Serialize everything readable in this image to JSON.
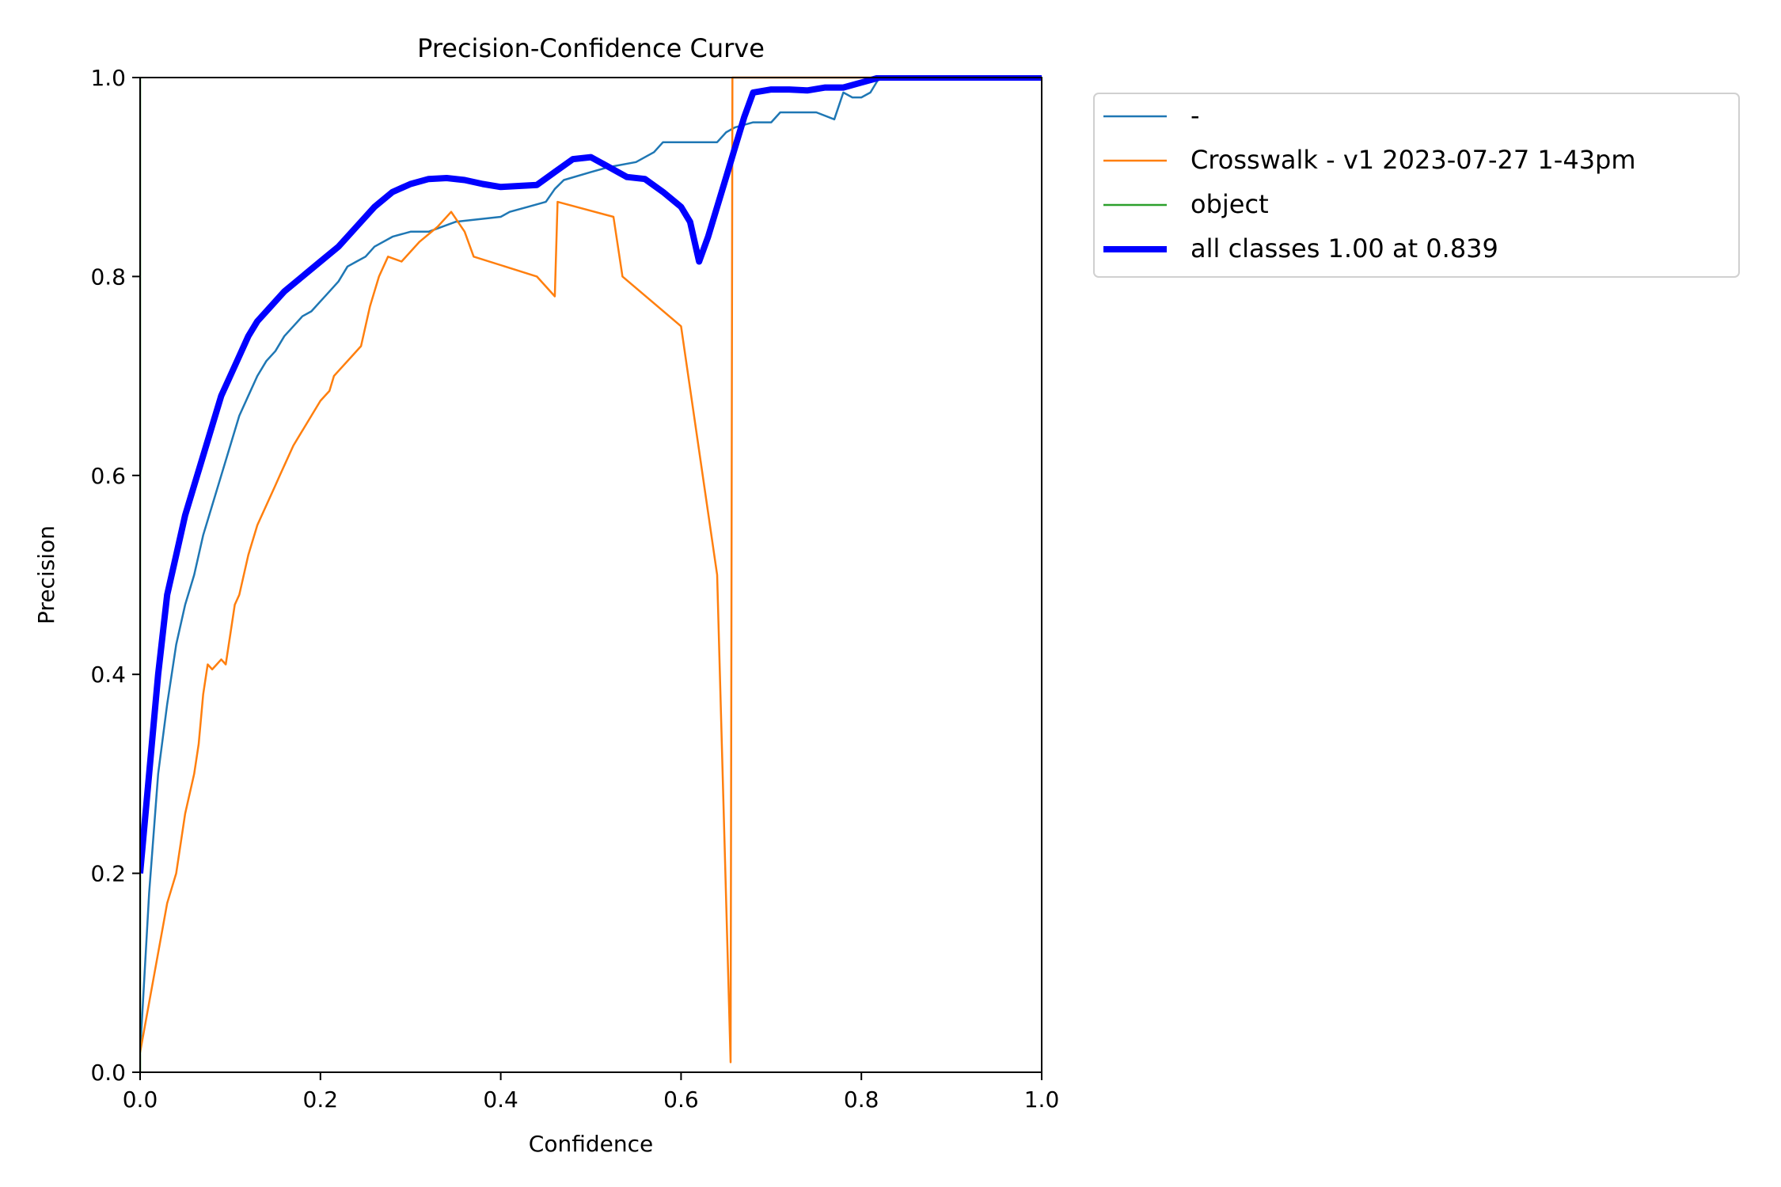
{
  "chart_data": {
    "type": "line",
    "title": "Precision-Confidence Curve",
    "xlabel": "Confidence",
    "ylabel": "Precision",
    "xlim": [
      0.0,
      1.0
    ],
    "ylim": [
      0.0,
      1.0
    ],
    "xticks": [
      "0.0",
      "0.2",
      "0.4",
      "0.6",
      "0.8",
      "1.0"
    ],
    "yticks": [
      "0.0",
      "0.2",
      "0.4",
      "0.6",
      "0.8",
      "1.0"
    ],
    "grid": false,
    "legend_position": "outside-right-top",
    "series": [
      {
        "name": "-",
        "color": "#1f77b4",
        "width": "thin",
        "x": [
          0.0,
          0.005,
          0.01,
          0.02,
          0.03,
          0.04,
          0.05,
          0.06,
          0.07,
          0.08,
          0.09,
          0.1,
          0.11,
          0.12,
          0.13,
          0.14,
          0.15,
          0.16,
          0.17,
          0.18,
          0.19,
          0.2,
          0.21,
          0.22,
          0.23,
          0.24,
          0.25,
          0.26,
          0.28,
          0.3,
          0.32,
          0.35,
          0.38,
          0.4,
          0.41,
          0.43,
          0.45,
          0.46,
          0.47,
          0.5,
          0.52,
          0.55,
          0.57,
          0.58,
          0.6,
          0.62,
          0.64,
          0.65,
          0.66,
          0.68,
          0.7,
          0.71,
          0.72,
          0.75,
          0.77,
          0.78,
          0.79,
          0.8,
          0.81,
          0.82,
          0.85,
          0.9,
          1.0
        ],
        "y": [
          0.02,
          0.1,
          0.18,
          0.3,
          0.37,
          0.43,
          0.47,
          0.5,
          0.54,
          0.57,
          0.6,
          0.63,
          0.66,
          0.68,
          0.7,
          0.715,
          0.725,
          0.74,
          0.75,
          0.76,
          0.765,
          0.775,
          0.785,
          0.795,
          0.81,
          0.815,
          0.82,
          0.83,
          0.84,
          0.845,
          0.845,
          0.855,
          0.858,
          0.86,
          0.865,
          0.87,
          0.875,
          0.888,
          0.897,
          0.905,
          0.91,
          0.915,
          0.925,
          0.935,
          0.935,
          0.935,
          0.935,
          0.945,
          0.95,
          0.955,
          0.955,
          0.965,
          0.965,
          0.965,
          0.958,
          0.985,
          0.98,
          0.98,
          0.985,
          1.0,
          1.0,
          1.0,
          1.0
        ]
      },
      {
        "name": "Crosswalk - v1 2023-07-27 1-43pm",
        "color": "#ff7f0e",
        "width": "thin",
        "x": [
          0.0,
          0.01,
          0.02,
          0.03,
          0.04,
          0.05,
          0.06,
          0.065,
          0.07,
          0.075,
          0.08,
          0.085,
          0.09,
          0.095,
          0.1,
          0.105,
          0.11,
          0.12,
          0.13,
          0.14,
          0.15,
          0.155,
          0.16,
          0.17,
          0.18,
          0.19,
          0.2,
          0.21,
          0.215,
          0.22,
          0.235,
          0.245,
          0.255,
          0.265,
          0.275,
          0.29,
          0.31,
          0.33,
          0.345,
          0.36,
          0.37,
          0.44,
          0.46,
          0.463,
          0.525,
          0.535,
          0.6,
          0.64,
          0.655,
          0.657,
          0.66,
          0.665,
          0.67,
          0.7,
          0.8,
          0.9,
          1.0
        ],
        "y": [
          0.02,
          0.07,
          0.12,
          0.17,
          0.2,
          0.26,
          0.3,
          0.33,
          0.38,
          0.41,
          0.405,
          0.41,
          0.415,
          0.41,
          0.44,
          0.47,
          0.48,
          0.52,
          0.55,
          0.57,
          0.59,
          0.6,
          0.61,
          0.63,
          0.645,
          0.66,
          0.675,
          0.685,
          0.7,
          0.705,
          0.72,
          0.73,
          0.77,
          0.8,
          0.82,
          0.815,
          0.835,
          0.85,
          0.865,
          0.845,
          0.82,
          0.8,
          0.78,
          0.875,
          0.86,
          0.8,
          0.75,
          0.5,
          0.01,
          1.0,
          1.0,
          1.0,
          1.0,
          1.0,
          1.0,
          1.0,
          1.0
        ]
      },
      {
        "name": "object",
        "color": "#2ca02c",
        "width": "thin",
        "x": [
          0.0,
          0.0,
          0.0
        ],
        "y": [
          0.0,
          0.5,
          1.0
        ]
      },
      {
        "name": "all classes 1.00 at 0.839",
        "color": "#0000ff",
        "width": "thick",
        "x": [
          0.0,
          0.01,
          0.02,
          0.03,
          0.04,
          0.05,
          0.06,
          0.07,
          0.08,
          0.09,
          0.1,
          0.11,
          0.12,
          0.13,
          0.14,
          0.15,
          0.16,
          0.18,
          0.2,
          0.22,
          0.24,
          0.26,
          0.28,
          0.3,
          0.32,
          0.34,
          0.36,
          0.38,
          0.4,
          0.42,
          0.44,
          0.46,
          0.48,
          0.5,
          0.52,
          0.54,
          0.56,
          0.58,
          0.6,
          0.61,
          0.62,
          0.63,
          0.64,
          0.65,
          0.66,
          0.67,
          0.68,
          0.7,
          0.72,
          0.74,
          0.76,
          0.78,
          0.8,
          0.82,
          0.84,
          0.9,
          1.0
        ],
        "y": [
          0.2,
          0.3,
          0.4,
          0.48,
          0.52,
          0.56,
          0.59,
          0.62,
          0.65,
          0.68,
          0.7,
          0.72,
          0.74,
          0.755,
          0.765,
          0.775,
          0.785,
          0.8,
          0.815,
          0.83,
          0.85,
          0.87,
          0.885,
          0.893,
          0.898,
          0.899,
          0.897,
          0.893,
          0.89,
          0.891,
          0.892,
          0.905,
          0.918,
          0.92,
          0.91,
          0.9,
          0.898,
          0.885,
          0.87,
          0.855,
          0.815,
          0.84,
          0.87,
          0.9,
          0.93,
          0.96,
          0.985,
          0.988,
          0.988,
          0.987,
          0.99,
          0.99,
          0.995,
          1.0,
          1.0,
          1.0,
          1.0
        ]
      }
    ]
  }
}
